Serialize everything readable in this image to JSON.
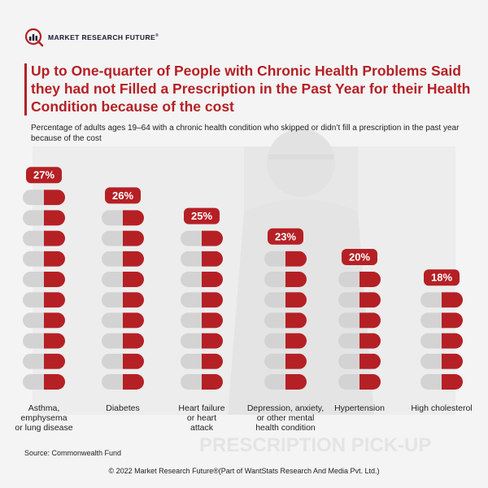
{
  "brand": {
    "name": "MARKET RESEARCH FUTURE",
    "reg": "®"
  },
  "title": "Up to One-quarter of People with Chronic Health Problems Said they had not Filled a Prescription in the Past Year for their Health Condition because of the cost",
  "subtitle": "Percentage of adults ages 19–64 with a chronic health condition who skipped or didn’t fill a prescription in the past year because of the cost",
  "source": "Source: Commonwealth Fund",
  "footer": "© 2022 Market Research Future®(Part of WantStats Research And Media Pvt. Ltd.)",
  "colors": {
    "accent": "#b52025",
    "pill_grey": "#d3d3d3",
    "text": "#222222"
  },
  "chart_data": {
    "type": "bar",
    "categories": [
      "Asthma, emphysema or lung disease",
      "Diabetes",
      "Heart failure or heart attack",
      "Depression, anxiety, or other mental health condition",
      "Hypertension",
      "High cholesterol"
    ],
    "category_lines": [
      [
        "Asthma,",
        "emphysema",
        "or lung disease"
      ],
      [
        "Diabetes"
      ],
      [
        "Heart failure",
        "or heart",
        "attack"
      ],
      [
        "Depression, anxiety,",
        "or other mental",
        "health condition"
      ],
      [
        "Hypertension"
      ],
      [
        "High cholesterol"
      ]
    ],
    "values": [
      27,
      26,
      25,
      23,
      20,
      18
    ],
    "value_labels": [
      "27%",
      "26%",
      "25%",
      "23%",
      "20%",
      "18%"
    ],
    "pills": [
      10,
      9,
      8,
      7,
      6,
      5
    ]
  }
}
